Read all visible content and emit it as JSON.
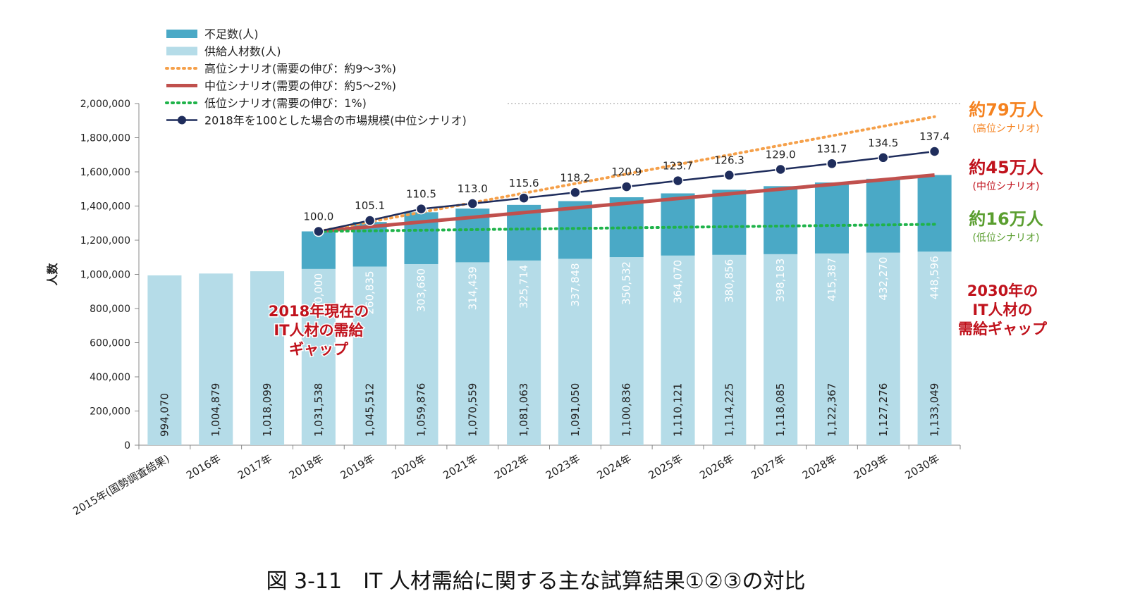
{
  "caption": "図 3-11　IT 人材需給に関する主な試算結果①②③の対比",
  "chart_data": {
    "type": "bar",
    "stacked": true,
    "ylabel": "人数",
    "ylim": [
      0,
      2000000
    ],
    "ytick_step": 200000,
    "grid": false,
    "legend_position": "top-left",
    "categories": [
      "2015年(国勢調査結果)",
      "2016年",
      "2017年",
      "2018年",
      "2019年",
      "2020年",
      "2021年",
      "2022年",
      "2023年",
      "2024年",
      "2025年",
      "2026年",
      "2027年",
      "2028年",
      "2029年",
      "2030年"
    ],
    "supply": {
      "name": "供給人材数(人)",
      "color": "#b5dce8",
      "values": [
        994070,
        1004879,
        1018099,
        1031538,
        1045512,
        1059876,
        1070559,
        1081063,
        1091050,
        1100836,
        1110121,
        1114225,
        1118085,
        1122367,
        1127276,
        1133049
      ],
      "labels": [
        "994,070",
        "1,004,879",
        "1,018,099",
        "1,031,538",
        "1,045,512",
        "1,059,876",
        "1,070,559",
        "1,081,063",
        "1,091,050",
        "1,100,836",
        "1,110,121",
        "1,114,225",
        "1,118,085",
        "1,122,367",
        "1,127,276",
        "1,133,049"
      ]
    },
    "shortage": {
      "name": "不足数(人)",
      "color": "#4aa9c6",
      "values": [
        null,
        null,
        null,
        220000,
        260835,
        303680,
        314439,
        325714,
        337848,
        350532,
        364070,
        380856,
        398183,
        415387,
        432270,
        448596
      ],
      "labels": [
        "",
        "",
        "",
        "220,000",
        "260,835",
        "303,680",
        "314,439",
        "325,714",
        "337,848",
        "350,532",
        "364,070",
        "380,856",
        "398,183",
        "415,387",
        "432,270",
        "448,596"
      ]
    },
    "scenarios": [
      {
        "name": "高位シナリオ(需要の伸び：約9～3%)",
        "color": "#f5a04a",
        "style": "dotted",
        "start": 1251538,
        "end": 1923049
      },
      {
        "name": "中位シナリオ(需要の伸び：約5～2%)",
        "color": "#c0504d",
        "style": "solid",
        "start": 1251538,
        "end": 1581645
      },
      {
        "name": "低位シナリオ(需要の伸び：1%)",
        "color": "#1fb34a",
        "style": "dotted",
        "start": 1251538,
        "end": 1293049
      }
    ],
    "market": {
      "name": "2018年を100とした場合の市場規模(中位シナリオ)",
      "color": "#1f2d5c",
      "values": [
        null,
        null,
        null,
        100.0,
        105.1,
        110.5,
        113.0,
        115.6,
        118.2,
        120.9,
        123.7,
        126.3,
        129.0,
        131.7,
        134.5,
        137.4
      ],
      "labels": [
        "",
        "",
        "",
        "100.0",
        "105.1",
        "110.5",
        "113.0",
        "115.6",
        "118.2",
        "120.9",
        "123.7",
        "126.3",
        "129.0",
        "131.7",
        "134.5",
        "137.4"
      ],
      "index_base": 1251538
    },
    "annotations": {
      "high_main": "約79万人",
      "high_sub": "(高位シナリオ)",
      "high_color": "#f5821f",
      "mid_main": "約45万人",
      "mid_sub": "(中位シナリオ)",
      "mid_color": "#c0121c",
      "low_main": "約16万人",
      "low_sub": "(低位シナリオ)",
      "low_color": "#5a9e2f",
      "gap_2018": [
        "2018年現在の",
        "IT人材の需給",
        "ギャップ"
      ],
      "gap_2030": [
        "2030年の",
        "IT人材の",
        "需給ギャップ"
      ],
      "gap_color": "#c0121c"
    }
  }
}
